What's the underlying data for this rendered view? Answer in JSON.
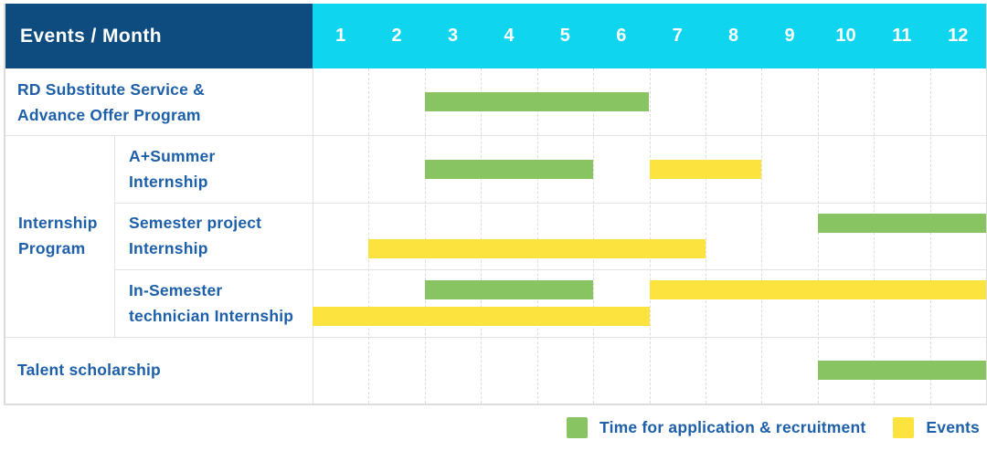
{
  "header": {
    "title": "Events / Month",
    "months": [
      "1",
      "2",
      "3",
      "4",
      "5",
      "6",
      "7",
      "8",
      "9",
      "10",
      "11",
      "12"
    ]
  },
  "colors": {
    "header_left_bg": "#0e4b7f",
    "header_months_bg": "#10d5ee",
    "label_text": "#1d5fa8",
    "recruitment_bar": "#88c562",
    "events_bar": "#fde33e",
    "grid_line": "#dcdcdc",
    "table_border": "#dcdcdc"
  },
  "chart_data": {
    "type": "bar",
    "variant": "gantt",
    "title": "Events / Month",
    "x_axis": {
      "label": "Month",
      "ticks": [
        1,
        2,
        3,
        4,
        5,
        6,
        7,
        8,
        9,
        10,
        11,
        12
      ],
      "range": [
        1,
        12
      ]
    },
    "groups": [
      {
        "label_lines": [
          "Internship",
          "Program"
        ],
        "start_row_index": 1,
        "row_span": 3
      }
    ],
    "rows": [
      {
        "group": "",
        "label_lines": [
          "RD Substitute Service &",
          "Advance Offer Program"
        ],
        "bars": [
          {
            "series": "recruitment",
            "start_month": 3,
            "end_month": 6,
            "track": "center"
          }
        ]
      },
      {
        "group": "Internship Program",
        "label_lines": [
          "A+Summer",
          "Internship"
        ],
        "bars": [
          {
            "series": "recruitment",
            "start_month": 3,
            "end_month": 5,
            "track": "center"
          },
          {
            "series": "events",
            "start_month": 7,
            "end_month": 8,
            "track": "center"
          }
        ]
      },
      {
        "group": "Internship Program",
        "label_lines": [
          "Semester project",
          "Internship"
        ],
        "bars": [
          {
            "series": "recruitment",
            "start_month": 10,
            "end_month": 12,
            "track": "top"
          },
          {
            "series": "events",
            "start_month": 2,
            "end_month": 7,
            "track": "bottom"
          }
        ]
      },
      {
        "group": "Internship Program",
        "label_lines": [
          "In-Semester",
          "technician Internship"
        ],
        "bars": [
          {
            "series": "recruitment",
            "start_month": 3,
            "end_month": 5,
            "track": "top"
          },
          {
            "series": "events",
            "start_month": 7,
            "end_month": 12,
            "track": "top"
          },
          {
            "series": "events",
            "start_month": 1,
            "end_month": 6,
            "track": "bottom"
          }
        ]
      },
      {
        "group": "",
        "label_lines": [
          "Talent scholarship"
        ],
        "bars": [
          {
            "series": "recruitment",
            "start_month": 10,
            "end_month": 12,
            "track": "center"
          }
        ]
      }
    ],
    "legend": [
      {
        "series": "recruitment",
        "label": "Time for application & recruitment",
        "color": "#88c562"
      },
      {
        "series": "events",
        "label": "Events",
        "color": "#fde33e"
      }
    ]
  }
}
